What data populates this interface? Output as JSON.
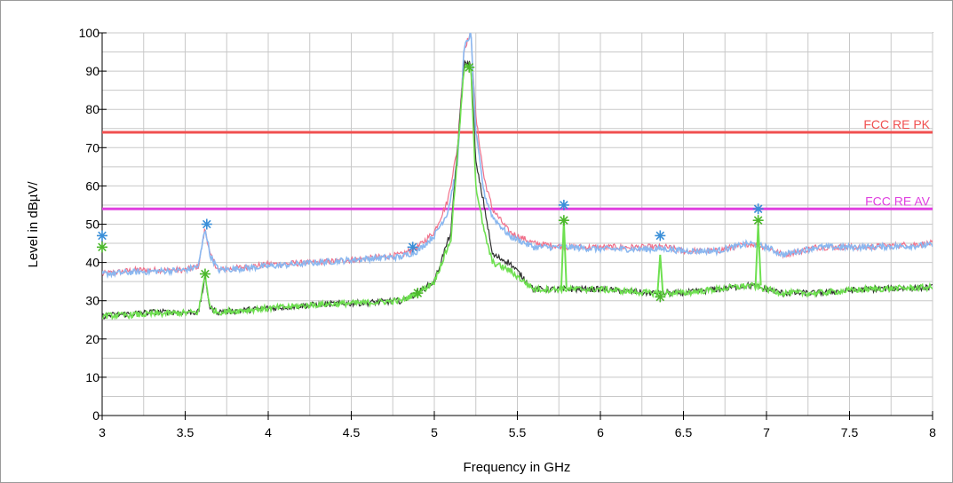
{
  "chart_data": {
    "type": "line",
    "title": "",
    "xlabel": "Frequency in GHz",
    "ylabel": "Level in dBµV/",
    "xlim": [
      3,
      8
    ],
    "ylim": [
      0,
      100
    ],
    "grid": true,
    "x_ticks": [
      3,
      3.5,
      4,
      4.5,
      5,
      5.5,
      6,
      6.5,
      7,
      7.5,
      8
    ],
    "x_tick_labels": [
      "3",
      "3.5",
      "4",
      "4.5",
      "5",
      "5.5",
      "6",
      "6.5",
      "7",
      "7.5",
      "8"
    ],
    "y_ticks": [
      0,
      10,
      20,
      30,
      40,
      50,
      60,
      70,
      80,
      90,
      100
    ],
    "y_tick_labels": [
      "0",
      "10",
      "20",
      "30",
      "40",
      "50",
      "60",
      "70",
      "80",
      "90",
      "100"
    ],
    "limits": [
      {
        "label": "FCC RE PK",
        "y": 74,
        "color": "#f05050"
      },
      {
        "label": "FCC RE AV",
        "y": 54,
        "color": "#e040e0"
      }
    ],
    "series": [
      {
        "role": "peak-1",
        "color": "#f0708a",
        "width": 1.2,
        "points": [
          [
            3,
            37
          ],
          [
            3.2,
            38
          ],
          [
            3.5,
            38
          ],
          [
            3.58,
            39
          ],
          [
            3.62,
            49
          ],
          [
            3.65,
            42
          ],
          [
            3.7,
            38
          ],
          [
            4,
            39.5
          ],
          [
            4.3,
            40
          ],
          [
            4.6,
            41
          ],
          [
            4.8,
            42
          ],
          [
            4.9,
            44
          ],
          [
            5,
            48
          ],
          [
            5.08,
            56
          ],
          [
            5.14,
            70
          ],
          [
            5.18,
            96
          ],
          [
            5.22,
            100
          ],
          [
            5.25,
            78
          ],
          [
            5.3,
            62
          ],
          [
            5.35,
            54
          ],
          [
            5.45,
            48
          ],
          [
            5.6,
            45
          ],
          [
            5.8,
            44
          ],
          [
            6,
            44
          ],
          [
            6.2,
            44
          ],
          [
            6.4,
            44
          ],
          [
            6.5,
            43
          ],
          [
            6.7,
            43
          ],
          [
            6.9,
            45
          ],
          [
            7,
            44
          ],
          [
            7.1,
            42
          ],
          [
            7.3,
            44
          ],
          [
            7.6,
            44
          ],
          [
            8,
            45
          ]
        ]
      },
      {
        "role": "peak-2",
        "color": "#8ab8f0",
        "width": 1.6,
        "points": [
          [
            3,
            37
          ],
          [
            3.2,
            37.5
          ],
          [
            3.5,
            38
          ],
          [
            3.58,
            39
          ],
          [
            3.62,
            49
          ],
          [
            3.65,
            42
          ],
          [
            3.7,
            38
          ],
          [
            4,
            39
          ],
          [
            4.3,
            40
          ],
          [
            4.6,
            41
          ],
          [
            4.8,
            41.5
          ],
          [
            4.9,
            43
          ],
          [
            5,
            47
          ],
          [
            5.08,
            53
          ],
          [
            5.14,
            66
          ],
          [
            5.18,
            96
          ],
          [
            5.22,
            100
          ],
          [
            5.25,
            74
          ],
          [
            5.3,
            58
          ],
          [
            5.35,
            52
          ],
          [
            5.45,
            47
          ],
          [
            5.6,
            44
          ],
          [
            5.8,
            44
          ],
          [
            6,
            43.5
          ],
          [
            6.2,
            43.5
          ],
          [
            6.4,
            43.5
          ],
          [
            6.5,
            43
          ],
          [
            6.7,
            43
          ],
          [
            6.9,
            45
          ],
          [
            7,
            44
          ],
          [
            7.1,
            42
          ],
          [
            7.3,
            44
          ],
          [
            7.6,
            44
          ],
          [
            8,
            44.5
          ]
        ]
      },
      {
        "role": "average-1",
        "color": "#303030",
        "width": 1.2,
        "points": [
          [
            3,
            26
          ],
          [
            3.3,
            27
          ],
          [
            3.58,
            27
          ],
          [
            3.62,
            36
          ],
          [
            3.65,
            28
          ],
          [
            3.7,
            27
          ],
          [
            4,
            28
          ],
          [
            4.3,
            29
          ],
          [
            4.6,
            29.5
          ],
          [
            4.8,
            30
          ],
          [
            4.9,
            32
          ],
          [
            5,
            35
          ],
          [
            5.1,
            48
          ],
          [
            5.18,
            92
          ],
          [
            5.22,
            92
          ],
          [
            5.25,
            66
          ],
          [
            5.3,
            55
          ],
          [
            5.35,
            42
          ],
          [
            5.45,
            40
          ],
          [
            5.6,
            33
          ],
          [
            5.8,
            33
          ],
          [
            6,
            33
          ],
          [
            6.3,
            32
          ],
          [
            6.5,
            32
          ],
          [
            6.7,
            33
          ],
          [
            6.9,
            34
          ],
          [
            7,
            33
          ],
          [
            7.1,
            32
          ],
          [
            7.3,
            32
          ],
          [
            7.6,
            33
          ],
          [
            8,
            33.5
          ]
        ]
      },
      {
        "role": "average-2",
        "color": "#6ee050",
        "width": 1.6,
        "points": [
          [
            3,
            26
          ],
          [
            3.3,
            26.5
          ],
          [
            3.58,
            27
          ],
          [
            3.62,
            37
          ],
          [
            3.65,
            28
          ],
          [
            3.7,
            27
          ],
          [
            4,
            28
          ],
          [
            4.3,
            29
          ],
          [
            4.6,
            29.5
          ],
          [
            4.8,
            30
          ],
          [
            4.9,
            32
          ],
          [
            5,
            35
          ],
          [
            5.1,
            46
          ],
          [
            5.18,
            91
          ],
          [
            5.22,
            91
          ],
          [
            5.25,
            60
          ],
          [
            5.3,
            48
          ],
          [
            5.35,
            40
          ],
          [
            5.45,
            38
          ],
          [
            5.6,
            33
          ],
          [
            5.8,
            33
          ],
          [
            6,
            33
          ],
          [
            6.3,
            32
          ],
          [
            6.5,
            32
          ],
          [
            6.7,
            33
          ],
          [
            6.9,
            34
          ],
          [
            7,
            33
          ],
          [
            7.1,
            32
          ],
          [
            7.3,
            32
          ],
          [
            7.6,
            33
          ],
          [
            8,
            33.5
          ]
        ]
      }
    ],
    "spikes": [
      {
        "x": 5.78,
        "base": 33,
        "top": 51,
        "color": "#6ee050"
      },
      {
        "x": 6.36,
        "base": 32,
        "top": 42,
        "color": "#6ee050"
      },
      {
        "x": 6.95,
        "base": 34,
        "top": 50,
        "color": "#6ee050"
      }
    ],
    "markers": [
      {
        "x": 3.0,
        "y": 47,
        "color": "#3a8fd8"
      },
      {
        "x": 3.63,
        "y": 50,
        "color": "#3a8fd8"
      },
      {
        "x": 4.87,
        "y": 44,
        "color": "#3a8fd8"
      },
      {
        "x": 5.78,
        "y": 55,
        "color": "#3a8fd8"
      },
      {
        "x": 6.36,
        "y": 47,
        "color": "#3a8fd8"
      },
      {
        "x": 6.95,
        "y": 54,
        "color": "#3a8fd8"
      },
      {
        "x": 3.0,
        "y": 44,
        "color": "#4cb82c"
      },
      {
        "x": 3.62,
        "y": 37,
        "color": "#4cb82c"
      },
      {
        "x": 4.9,
        "y": 32,
        "color": "#4cb82c"
      },
      {
        "x": 5.21,
        "y": 91,
        "color": "#4cb82c"
      },
      {
        "x": 5.78,
        "y": 51,
        "color": "#4cb82c"
      },
      {
        "x": 6.36,
        "y": 31,
        "color": "#4cb82c"
      },
      {
        "x": 6.95,
        "y": 51,
        "color": "#4cb82c"
      }
    ]
  }
}
